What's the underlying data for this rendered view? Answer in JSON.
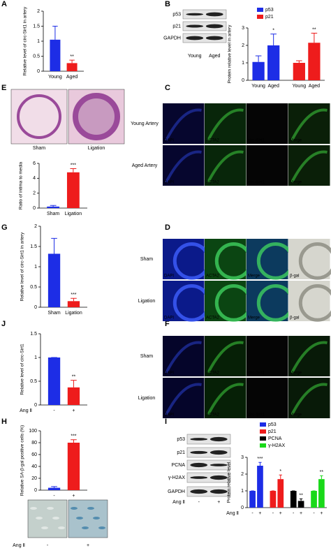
{
  "panels": [
    "A",
    "B",
    "E",
    "C",
    "G",
    "D",
    "J",
    "F",
    "H",
    "I"
  ],
  "blots": {
    "B": {
      "rows": [
        "p53",
        "p21",
        "GAPDH"
      ],
      "lanes": [
        "Young",
        "Aged"
      ]
    },
    "I": {
      "rows": [
        "p53",
        "p21",
        "PCNA",
        "γ-H2AX",
        "GAPDH"
      ],
      "xlabel": "Ang Ⅱ",
      "lanes": [
        "-",
        "+"
      ]
    }
  },
  "micrographs": {
    "E": {
      "labels": [
        "Sham",
        "Ligation"
      ]
    },
    "C": {
      "rows": [
        "Young Artery",
        "Aged Artery"
      ],
      "channels": [
        "DAPI",
        "ACTA2",
        "circ-Sirt1",
        "Merge"
      ]
    },
    "D": {
      "rows": [
        "Sham",
        "Ligation"
      ],
      "channels": [
        "DAPI",
        "ACTA2",
        "Merge",
        "β-gal"
      ]
    },
    "F": {
      "rows": [
        "Sham",
        "Ligation"
      ],
      "channels": [
        "DAPI",
        "ACTA2",
        "circ-Sirt1",
        "Merge"
      ]
    },
    "H": {
      "xlabel": "Ang Ⅱ",
      "labels": [
        "-",
        "+"
      ]
    }
  },
  "chart_data": [
    {
      "type": "bar",
      "ylabel": "Relative level of circ-Sirt1 in artery",
      "categories": [
        "Young",
        "Aged"
      ],
      "series": [
        {
          "values": [
            1.05,
            0.27
          ],
          "errors": [
            0.45,
            0.1
          ],
          "colors": [
            "#1d2de6",
            "#ee1c1c"
          ],
          "significance": [
            null,
            "**"
          ]
        }
      ],
      "ylim": [
        0,
        2
      ],
      "yticks": [
        0,
        0.5,
        1,
        1.5,
        2
      ]
    },
    {
      "type": "bar",
      "ylabel": "Protein relative level in artery",
      "categories": [
        "Young",
        "Aged",
        "Young",
        "Aged"
      ],
      "series": [
        {
          "name": "p53",
          "color": "#1d2de6",
          "values": [
            1.05,
            2.0,
            null,
            null
          ],
          "errors": [
            0.35,
            0.65,
            null,
            null
          ],
          "significance": [
            null,
            "*",
            null,
            null
          ]
        },
        {
          "name": "p21",
          "color": "#ee1c1c",
          "values": [
            null,
            null,
            1.0,
            2.15
          ],
          "errors": [
            null,
            null,
            0.12,
            0.55
          ],
          "significance": [
            null,
            null,
            null,
            "**"
          ]
        }
      ],
      "ylim": [
        0,
        3
      ],
      "yticks": [
        0,
        1,
        2,
        3
      ],
      "legend": "top-left"
    },
    {
      "type": "bar",
      "ylabel": "Ratio of intima to media",
      "categories": [
        "Sham",
        "Ligation"
      ],
      "series": [
        {
          "values": [
            0.2,
            4.8
          ],
          "errors": [
            0.15,
            0.5
          ],
          "colors": [
            "#1d2de6",
            "#ee1c1c"
          ],
          "significance": [
            null,
            "***"
          ]
        }
      ],
      "ylim": [
        0,
        6
      ],
      "yticks": [
        0,
        2,
        4,
        6
      ]
    },
    {
      "type": "bar",
      "ylabel": "Relative level of circ-Sirt1 in artery",
      "categories": [
        "Sham",
        "Ligation"
      ],
      "series": [
        {
          "values": [
            1.32,
            0.15
          ],
          "errors": [
            0.38,
            0.07
          ],
          "colors": [
            "#1d2de6",
            "#ee1c1c"
          ],
          "significance": [
            null,
            "***"
          ]
        }
      ],
      "ylim": [
        0,
        2
      ],
      "yticks": [
        0,
        0.5,
        1,
        1.5,
        2
      ]
    },
    {
      "type": "bar",
      "ylabel": "Relative level of circ-Sirt1",
      "xlabel": "Ang Ⅱ",
      "categories": [
        "-",
        "+"
      ],
      "series": [
        {
          "values": [
            1.0,
            0.37
          ],
          "errors": [
            0,
            0.15
          ],
          "colors": [
            "#1d2de6",
            "#ee1c1c"
          ],
          "significance": [
            null,
            "**"
          ]
        }
      ],
      "ylim": [
        0,
        1.5
      ],
      "yticks": [
        0,
        0.5,
        1,
        1.5
      ]
    },
    {
      "type": "bar",
      "ylabel": "Relative SA-β-gal positive cells (%)",
      "categories": [
        "-",
        "+"
      ],
      "series": [
        {
          "values": [
            4,
            80
          ],
          "errors": [
            2,
            5
          ],
          "colors": [
            "#1d2de6",
            "#ee1c1c"
          ],
          "significance": [
            null,
            "***"
          ]
        }
      ],
      "ylim": [
        0,
        100
      ],
      "yticks": [
        0,
        20,
        40,
        60,
        80,
        100
      ]
    },
    {
      "type": "bar",
      "ylabel": "Protein relative level",
      "xlabel": "Ang Ⅱ",
      "categories": [
        "-",
        "+",
        "-",
        "+",
        "-",
        "+",
        "-",
        "+"
      ],
      "series": [
        {
          "name": "p53",
          "color": "#1d2de6",
          "values": [
            1,
            2.5,
            null,
            null,
            null,
            null,
            null,
            null
          ],
          "errors": [
            0,
            0.2,
            null,
            null,
            null,
            null,
            null,
            null
          ],
          "significance": [
            null,
            "***",
            null,
            null,
            null,
            null,
            null,
            null
          ]
        },
        {
          "name": "p21",
          "color": "#ee1c1c",
          "values": [
            null,
            null,
            1,
            1.7,
            null,
            null,
            null,
            null
          ],
          "errors": [
            null,
            null,
            0,
            0.25,
            null,
            null,
            null,
            null
          ],
          "significance": [
            null,
            null,
            null,
            "*",
            null,
            null,
            null,
            null
          ]
        },
        {
          "name": "PCNA",
          "color": "#000000",
          "values": [
            null,
            null,
            null,
            null,
            1,
            0.4,
            null,
            null
          ],
          "errors": [
            null,
            null,
            null,
            null,
            0,
            0.12,
            null,
            null
          ],
          "significance": [
            null,
            null,
            null,
            null,
            null,
            "**",
            null,
            null
          ]
        },
        {
          "name": "γ-H2AX",
          "color": "#19d919",
          "values": [
            null,
            null,
            null,
            null,
            null,
            null,
            1,
            1.7
          ],
          "errors": [
            null,
            null,
            null,
            null,
            null,
            null,
            0,
            0.2
          ],
          "significance": [
            null,
            null,
            null,
            null,
            null,
            null,
            null,
            "**"
          ]
        }
      ],
      "ylim": [
        0,
        3
      ],
      "yticks": [
        0,
        1,
        2,
        3
      ],
      "legend": "top-left"
    }
  ]
}
